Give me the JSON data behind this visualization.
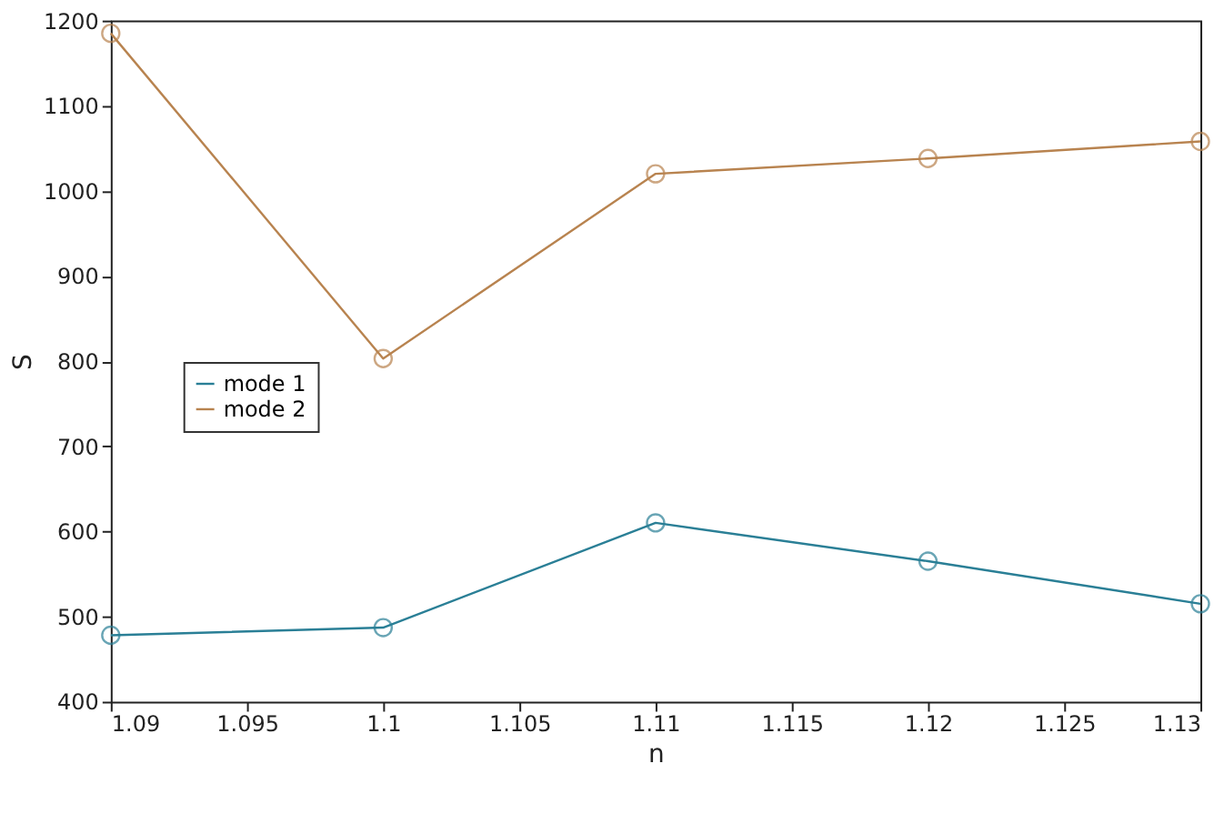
{
  "chart_data": {
    "type": "line",
    "xlabel": "n",
    "ylabel": "S",
    "x": [
      1.09,
      1.1,
      1.11,
      1.12,
      1.13
    ],
    "series": [
      {
        "name": "mode 1",
        "color": "#2a7f96",
        "values": [
          478,
          487,
          610,
          565,
          515
        ]
      },
      {
        "name": "mode 2",
        "color": "#b8834f",
        "values": [
          1185,
          803,
          1020,
          1038,
          1058
        ]
      }
    ],
    "xlim": [
      1.09,
      1.13
    ],
    "xticks": [
      1.09,
      1.095,
      1.1,
      1.105,
      1.11,
      1.115,
      1.12,
      1.125,
      1.13
    ],
    "ylim": [
      400,
      1200
    ],
    "yticks": [
      400,
      500,
      600,
      700,
      800,
      900,
      1000,
      1100,
      1200
    ],
    "grid": false,
    "legend": "left",
    "marker": "circle",
    "line_style": "solid"
  }
}
